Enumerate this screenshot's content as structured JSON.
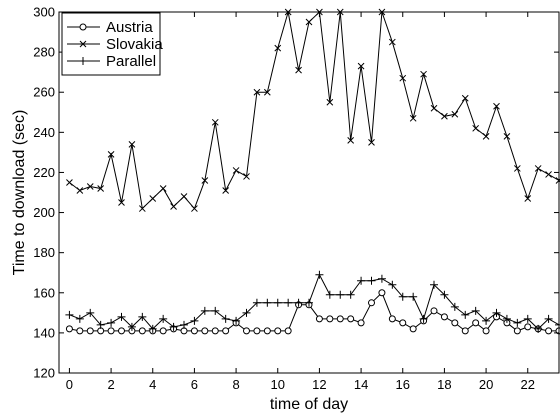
{
  "chart_data": {
    "type": "line",
    "xlabel": "time of day",
    "ylabel": "Time to download (sec)",
    "xlim": [
      -0.5,
      23.5
    ],
    "ylim": [
      120,
      300
    ],
    "x_ticks": [
      0,
      2,
      4,
      6,
      8,
      10,
      12,
      14,
      16,
      18,
      20,
      22
    ],
    "y_ticks": [
      120,
      140,
      160,
      180,
      200,
      220,
      240,
      260,
      280,
      300
    ],
    "grid": false,
    "legend_position": "top-left",
    "series": [
      {
        "name": "Austria",
        "marker": "circle",
        "x": [
          0,
          0.5,
          1,
          1.5,
          2,
          2.5,
          3,
          3.5,
          4,
          4.5,
          5,
          5.5,
          6,
          6.5,
          7,
          7.5,
          8,
          8.5,
          9,
          9.5,
          10,
          10.5,
          11,
          11.5,
          12,
          12.5,
          13,
          13.5,
          14,
          14.5,
          15,
          15.5,
          16,
          16.5,
          17,
          17.5,
          18,
          18.5,
          19,
          19.5,
          20,
          20.5,
          21,
          21.5,
          22,
          22.5,
          23,
          23.5
        ],
        "values": [
          142,
          141,
          141,
          141,
          141,
          141,
          141,
          141,
          141,
          141,
          142,
          141,
          141,
          141,
          141,
          141,
          145,
          141,
          141,
          141,
          141,
          141,
          154,
          154,
          147,
          147,
          147,
          147,
          145,
          155,
          160,
          147,
          145,
          142,
          146,
          151,
          148,
          145,
          141,
          145,
          141,
          148,
          145,
          141,
          143,
          142,
          141,
          141
        ]
      },
      {
        "name": "Slovakia",
        "marker": "x",
        "x": [
          0,
          0.5,
          1,
          1.5,
          2,
          2.5,
          3,
          3.5,
          4,
          4.5,
          5,
          5.5,
          6,
          6.5,
          7,
          7.5,
          8,
          8.5,
          9,
          9.5,
          10,
          10.5,
          11,
          11.5,
          12,
          12.5,
          13,
          13.5,
          14,
          14.5,
          15,
          15.5,
          16,
          16.5,
          17,
          17.5,
          18,
          18.5,
          19,
          19.5,
          20,
          20.5,
          21,
          21.5,
          22,
          22.5,
          23,
          23.5
        ],
        "values": [
          215,
          211,
          213,
          212,
          229,
          205,
          234,
          202,
          207,
          212,
          203,
          208,
          202,
          216,
          245,
          211,
          221,
          218,
          260,
          260,
          282,
          300,
          271,
          295,
          300,
          255,
          300,
          236,
          273,
          235,
          300,
          285,
          267,
          247,
          269,
          252,
          248,
          249,
          257,
          242,
          238,
          253,
          238,
          222,
          207,
          222,
          219,
          216
        ]
      },
      {
        "name": "Parallel",
        "marker": "plus",
        "x": [
          0,
          0.5,
          1,
          1.5,
          2,
          2.5,
          3,
          3.5,
          4,
          4.5,
          5,
          5.5,
          6,
          6.5,
          7,
          7.5,
          8,
          8.5,
          9,
          9.5,
          10,
          10.5,
          11,
          11.5,
          12,
          12.5,
          13,
          13.5,
          14,
          14.5,
          15,
          15.5,
          16,
          16.5,
          17,
          17.5,
          18,
          18.5,
          19,
          19.5,
          20,
          20.5,
          21,
          21.5,
          22,
          22.5,
          23,
          23.5
        ],
        "values": [
          149,
          147,
          150,
          144,
          145,
          148,
          143,
          148,
          142,
          147,
          143,
          144,
          146,
          151,
          151,
          147,
          146,
          150,
          155,
          155,
          155,
          155,
          155,
          155,
          169,
          159,
          159,
          159,
          166,
          166,
          167,
          164,
          158,
          158,
          147,
          164,
          159,
          153,
          149,
          151,
          146,
          150,
          147,
          145,
          147,
          142,
          147,
          144
        ]
      }
    ]
  }
}
